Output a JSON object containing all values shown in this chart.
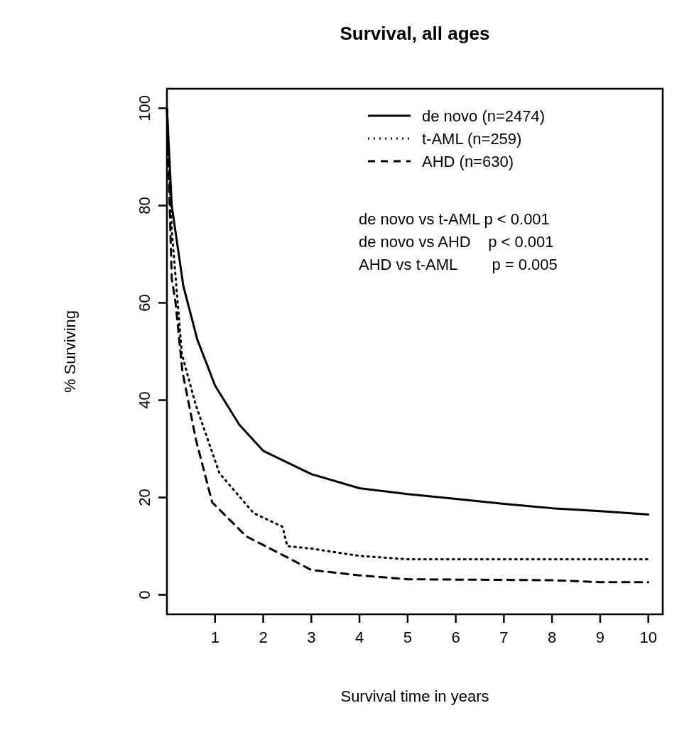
{
  "chart_data": {
    "type": "line",
    "title": "Survival, all ages",
    "xlabel": "Survival time in years",
    "ylabel": "% Surviving",
    "xlim": [
      0,
      10.3
    ],
    "ylim": [
      -4,
      104
    ],
    "xticks": [
      1,
      2,
      3,
      4,
      5,
      6,
      7,
      8,
      9,
      10
    ],
    "yticks": [
      0,
      20,
      40,
      60,
      80,
      100
    ],
    "grid": false,
    "legend": "top right",
    "marker": "none",
    "annotations": [
      "de novo vs t-AML p < 0.001",
      "de novo vs AHD    p < 0.001",
      "AHD vs t-AML        p = 0.005"
    ],
    "series": [
      {
        "name": "de novo (n=2474)",
        "color": "#000000",
        "line_style": "solid",
        "x": [
          0,
          0.1,
          0.34,
          0.63,
          1,
          1.5,
          2,
          3,
          4,
          5,
          6,
          7,
          8,
          9,
          10
        ],
        "values": [
          100,
          80,
          63.5,
          52.5,
          43,
          35,
          29.6,
          24.8,
          21.9,
          20.7,
          19.7,
          18.7,
          17.8,
          17.2,
          16.5
        ]
      },
      {
        "name": "t-AML (n=259)",
        "color": "#000000",
        "line_style": "dotted",
        "x": [
          0,
          0.1,
          0.31,
          0.6,
          1.09,
          1.8,
          2.4,
          2.5,
          3,
          4,
          5,
          10
        ],
        "values": [
          100,
          75,
          49.5,
          39,
          25,
          16.8,
          14,
          10,
          9.5,
          8,
          7.3,
          7.3
        ]
      },
      {
        "name": "AHD (n=630)",
        "color": "#000000",
        "line_style": "dashed",
        "x": [
          0,
          0.1,
          0.18,
          0.32,
          0.6,
          0.94,
          1.65,
          2.5,
          3,
          4,
          5,
          8,
          9,
          10
        ],
        "values": [
          100,
          65,
          60,
          46,
          32,
          19,
          12,
          7.7,
          5.1,
          4,
          3.2,
          3,
          2.6,
          2.6
        ]
      }
    ]
  }
}
